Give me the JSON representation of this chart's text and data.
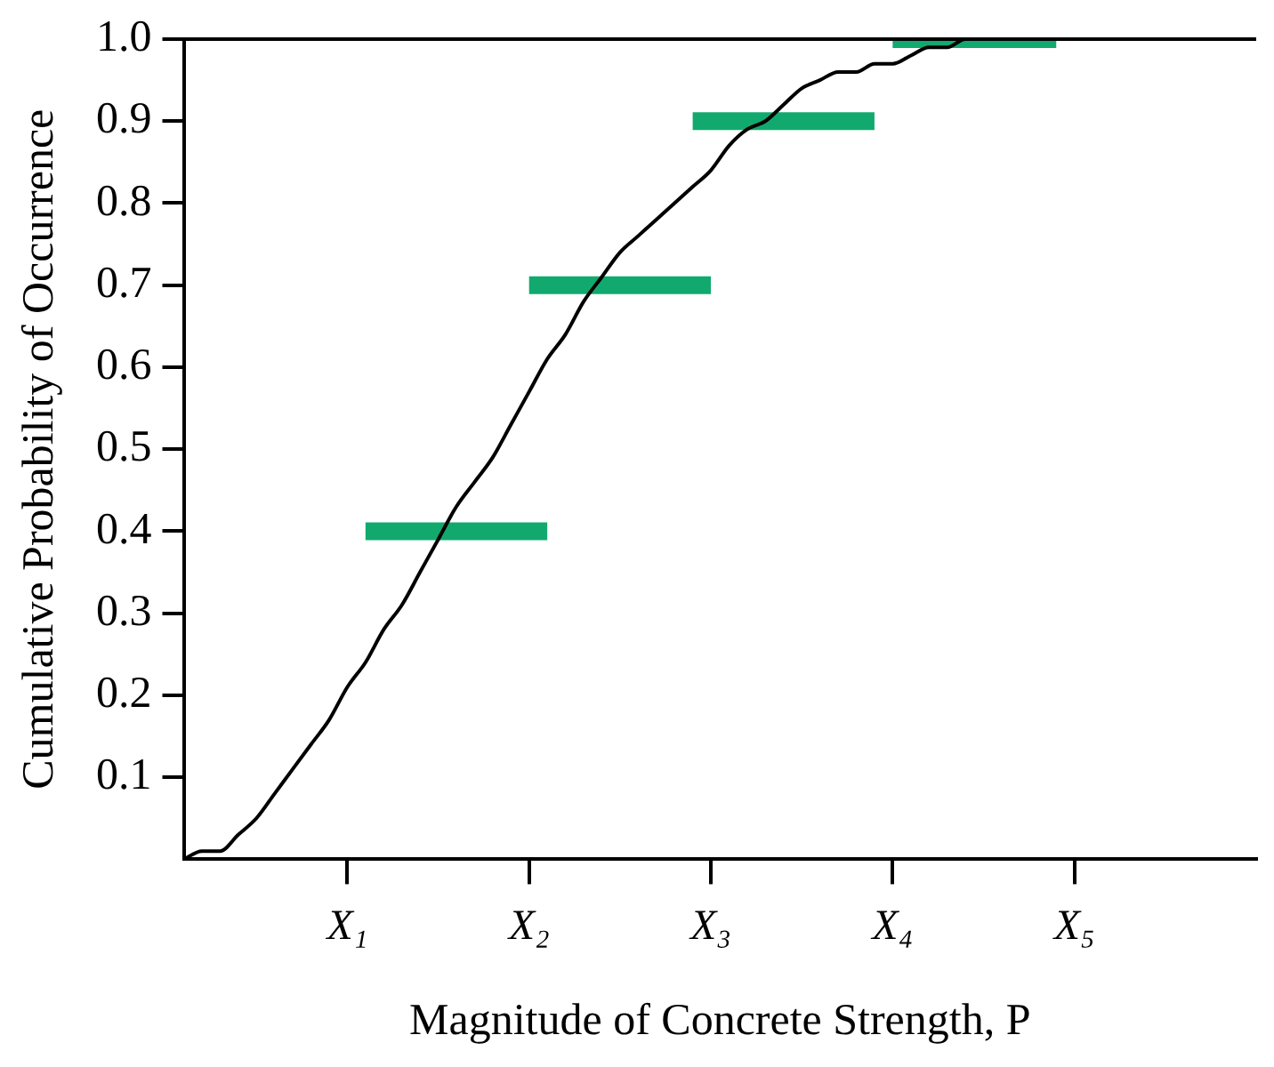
{
  "chart_data": {
    "type": "line",
    "xlabel": "Magnitude of Concrete Strength, P",
    "ylabel": "Cumulative Probability of Occurrence",
    "categories": [
      null,
      null,
      null,
      null,
      null,
      null,
      null,
      null,
      null,
      "X₁",
      null,
      null,
      null,
      null,
      null,
      null,
      null,
      null,
      null,
      "X₂",
      null,
      null,
      null,
      null,
      null,
      null,
      null,
      null,
      null,
      "X₃",
      null,
      null,
      null,
      null,
      null,
      null,
      null,
      null,
      null,
      "X₄",
      null,
      null,
      null,
      null,
      null,
      null,
      null,
      null,
      null,
      "X₅",
      null,
      null,
      null,
      null,
      null,
      null,
      null,
      null,
      null,
      null
    ],
    "ylim": [
      0,
      1
    ],
    "yticks": [
      0.1,
      0.2,
      0.3,
      0.4,
      0.5,
      0.6,
      0.7,
      0.8,
      0.9,
      {
        "value": 1,
        "label": "1.0"
      }
    ],
    "grid": false,
    "legend": false,
    "marker": "none",
    "line_style": "solid",
    "series": [
      {
        "color": "#000000",
        "values": [
          0,
          0.01,
          0.01,
          0.03,
          0.05,
          0.08,
          0.11,
          0.14,
          0.17,
          0.21,
          0.24,
          0.28,
          0.31,
          0.35,
          0.39,
          0.43,
          0.46,
          0.49,
          0.53,
          0.57,
          0.61,
          0.64,
          0.68,
          0.71,
          0.74,
          0.76,
          0.78,
          0.8,
          0.82,
          0.84,
          0.87,
          0.89,
          0.9,
          0.92,
          0.94,
          0.95,
          0.96,
          0.96,
          0.97,
          0.97,
          0.98,
          0.99,
          0.99,
          1,
          1,
          1,
          null,
          null,
          null,
          null,
          null,
          null,
          null,
          null,
          null,
          null,
          null,
          null,
          null,
          null
        ]
      },
      {
        "color": "#12a96f",
        "values": [
          null,
          null,
          null,
          null,
          null,
          null,
          null,
          null,
          null,
          null,
          0.4,
          0.4,
          0.4,
          0.4,
          0.4,
          0.4,
          0.4,
          0.4,
          0.4,
          0.4,
          0.4,
          null,
          null,
          null,
          null,
          null,
          null,
          null,
          null,
          null,
          null,
          null,
          null,
          null,
          null,
          null,
          null,
          null,
          null,
          null,
          null,
          null,
          null,
          null,
          null,
          null,
          null,
          null,
          null,
          null,
          null,
          null,
          null,
          null,
          null,
          null,
          null,
          null,
          null,
          null
        ]
      },
      {
        "color": "#12a96f",
        "values": [
          null,
          null,
          null,
          null,
          null,
          null,
          null,
          null,
          null,
          null,
          null,
          null,
          null,
          null,
          null,
          null,
          null,
          null,
          null,
          0.7,
          0.7,
          0.7,
          0.7,
          0.7,
          0.7,
          0.7,
          0.7,
          0.7,
          0.7,
          0.7,
          null,
          null,
          null,
          null,
          null,
          null,
          null,
          null,
          null,
          null,
          null,
          null,
          null,
          null,
          null,
          null,
          null,
          null,
          null,
          null,
          null,
          null,
          null,
          null,
          null,
          null,
          null,
          null,
          null,
          null
        ]
      },
      {
        "color": "#12a96f",
        "values": [
          null,
          null,
          null,
          null,
          null,
          null,
          null,
          null,
          null,
          null,
          null,
          null,
          null,
          null,
          null,
          null,
          null,
          null,
          null,
          null,
          null,
          null,
          null,
          null,
          null,
          null,
          null,
          null,
          0.9,
          0.9,
          0.9,
          0.9,
          0.9,
          0.9,
          0.9,
          0.9,
          0.9,
          0.9,
          0.9,
          null,
          null,
          null,
          null,
          null,
          null,
          null,
          null,
          null,
          null,
          null,
          null,
          null,
          null,
          null,
          null,
          null,
          null,
          null,
          null,
          null
        ]
      },
      {
        "color": "#12a96f",
        "values": [
          null,
          null,
          null,
          null,
          null,
          null,
          null,
          null,
          null,
          null,
          null,
          null,
          null,
          null,
          null,
          null,
          null,
          null,
          null,
          null,
          null,
          null,
          null,
          null,
          null,
          null,
          null,
          null,
          null,
          null,
          null,
          null,
          null,
          null,
          null,
          null,
          null,
          null,
          null,
          1,
          1,
          1,
          1,
          1,
          1,
          1,
          1,
          1,
          1,
          null,
          null,
          null,
          null,
          null,
          null,
          null,
          null,
          null,
          null,
          null
        ]
      }
    ]
  }
}
